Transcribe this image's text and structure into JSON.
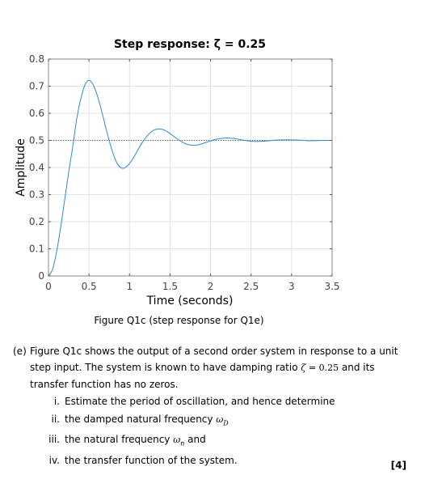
{
  "chart_data": {
    "type": "line",
    "title": "Step response: ζ = 0.25",
    "xlabel": "Time (seconds)",
    "ylabel": "Amplitude",
    "xlim": [
      0,
      3.5
    ],
    "ylim": [
      0,
      0.8
    ],
    "xticks": [
      0,
      0.5,
      1,
      1.5,
      2,
      2.5,
      3,
      3.5
    ],
    "xtick_labels": [
      "0",
      "0.5",
      "1",
      "1.5",
      "2",
      "2.5",
      "3",
      "3.5"
    ],
    "yticks": [
      0,
      0.1,
      0.2,
      0.3,
      0.4,
      0.5,
      0.6,
      0.7,
      0.8
    ],
    "ytick_labels": [
      "0",
      "0.1",
      "0.2",
      "0.3",
      "0.4",
      "0.5",
      "0.6",
      "0.7",
      "0.8"
    ],
    "grid": true,
    "reference_line": {
      "y": 0.5,
      "style": "dotted"
    },
    "series": [
      {
        "color": "#2e8bcf",
        "x": [
          0,
          0.05,
          0.1,
          0.15,
          0.2,
          0.25,
          0.3,
          0.35,
          0.4,
          0.45,
          0.5,
          0.55,
          0.6,
          0.65,
          0.7,
          0.75,
          0.8,
          0.85,
          0.9,
          0.95,
          1.0,
          1.05,
          1.1,
          1.15,
          1.2,
          1.25,
          1.3,
          1.35,
          1.4,
          1.45,
          1.5,
          1.55,
          1.6,
          1.65,
          1.7,
          1.75,
          1.8,
          1.85,
          1.9,
          1.95,
          2.0,
          2.05,
          2.1,
          2.15,
          2.2,
          2.25,
          2.3,
          2.35,
          2.4,
          2.45,
          2.5,
          2.55,
          2.6,
          2.7,
          2.8,
          2.9,
          3.0,
          3.1,
          3.2,
          3.3,
          3.4,
          3.5
        ],
        "values": [
          0,
          0.024,
          0.089,
          0.179,
          0.281,
          0.384,
          0.479,
          0.582,
          0.655,
          0.705,
          0.722,
          0.706,
          0.668,
          0.615,
          0.556,
          0.498,
          0.449,
          0.414,
          0.398,
          0.4,
          0.415,
          0.437,
          0.463,
          0.489,
          0.51,
          0.527,
          0.538,
          0.542,
          0.541,
          0.535,
          0.525,
          0.514,
          0.503,
          0.494,
          0.487,
          0.483,
          0.482,
          0.484,
          0.488,
          0.493,
          0.498,
          0.503,
          0.506,
          0.508,
          0.509,
          0.508,
          0.507,
          0.504,
          0.501,
          0.499,
          0.497,
          0.496,
          0.496,
          0.498,
          0.501,
          0.502,
          0.502,
          0.501,
          0.499,
          0.499,
          0.5,
          0.5
        ]
      }
    ]
  },
  "caption": "Figure Q1c (step response for Q1e)",
  "question": {
    "label": "(e)",
    "text_1": "Figure Q1c shows the output of a second order system in response to a unit step input. The system is known to have damping ratio ",
    "zeta_symbol": "ζ",
    "zeta_eq": " = 0.25",
    "text_2": " and its transfer function has no zeros.",
    "items": [
      {
        "num": "i.",
        "text": "Estimate the period of oscillation, and hence determine"
      },
      {
        "num": "ii.",
        "text": "the damped natural frequency ",
        "math": "ω",
        "sub": "D",
        "tail": ""
      },
      {
        "num": "iii.",
        "text": "the natural frequency ",
        "math": "ω",
        "sub": "n",
        "tail": " and"
      },
      {
        "num": "iv.",
        "text": "the transfer function of the system."
      }
    ]
  },
  "marks": "[4]"
}
